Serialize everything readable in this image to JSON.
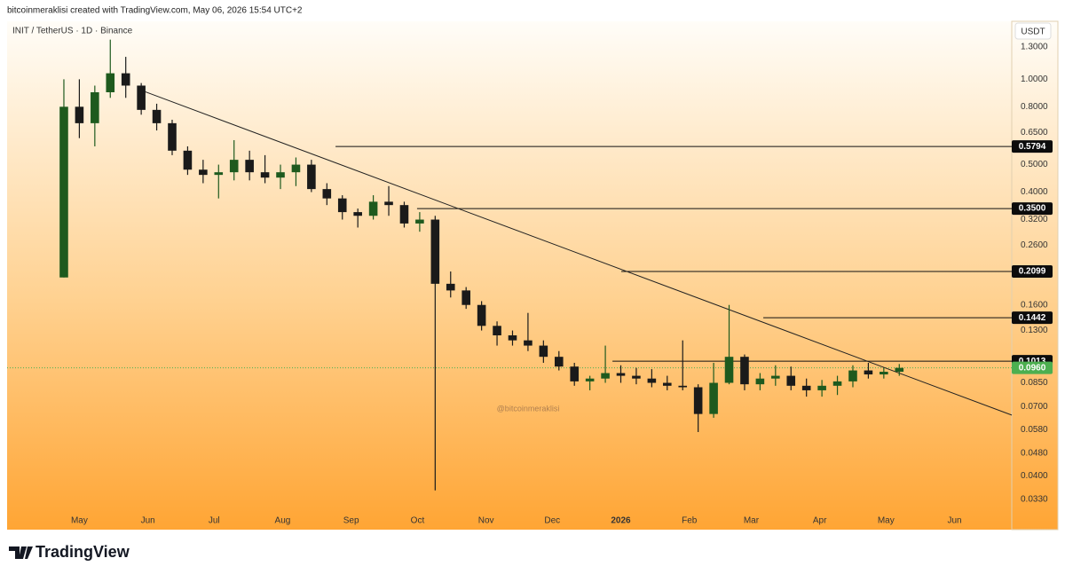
{
  "header": "bitcoinmeraklisi created with TradingView.com, May 06, 2026 15:54 UTC+2",
  "chart_data": {
    "type": "candlestick",
    "symbol": "INIT / TetherUS · 1D · Binance",
    "currency": "USDT",
    "watermark": "@bitcoinmeraklisi",
    "log_scale": true,
    "grid": false,
    "up_color": "#1e5a1e",
    "down_color": "#1a1a1a",
    "ylim": [
      0.0258,
      1.556
    ],
    "yticks": [
      {
        "value": 1.3,
        "label": "1.3000"
      },
      {
        "value": 1.0,
        "label": "1.0000"
      },
      {
        "value": 0.8,
        "label": "0.8000"
      },
      {
        "value": 0.65,
        "label": "0.6500"
      },
      {
        "value": 0.5,
        "label": "0.5000"
      },
      {
        "value": 0.4,
        "label": "0.4000"
      },
      {
        "value": 0.32,
        "label": "0.3200"
      },
      {
        "value": 0.26,
        "label": "0.2600"
      },
      {
        "value": 0.16,
        "label": "0.1600"
      },
      {
        "value": 0.13,
        "label": "0.1300"
      },
      {
        "value": 0.085,
        "label": "0.0850"
      },
      {
        "value": 0.07,
        "label": "0.0700"
      },
      {
        "value": 0.058,
        "label": "0.0580"
      },
      {
        "value": 0.048,
        "label": "0.0480"
      },
      {
        "value": 0.04,
        "label": "0.0400"
      },
      {
        "value": 0.033,
        "label": "0.0330"
      }
    ],
    "xlim": [
      -3.67,
      61.27
    ],
    "xticks": [
      {
        "value": 1,
        "label": "May"
      },
      {
        "value": 5.43,
        "label": "Jun"
      },
      {
        "value": 9.71,
        "label": "Jul"
      },
      {
        "value": 14.14,
        "label": "Aug"
      },
      {
        "value": 18.57,
        "label": "Sep"
      },
      {
        "value": 22.86,
        "label": "Oct"
      },
      {
        "value": 27.29,
        "label": "Nov"
      },
      {
        "value": 31.57,
        "label": "Dec"
      },
      {
        "value": 36,
        "label": "2026"
      },
      {
        "value": 40.43,
        "label": "Feb"
      },
      {
        "value": 44.43,
        "label": "Mar"
      },
      {
        "value": 48.86,
        "label": "Apr"
      },
      {
        "value": 53.14,
        "label": "May"
      },
      {
        "value": 57.57,
        "label": "Jun"
      }
    ],
    "open": [
      0.2,
      0.8,
      0.7,
      0.9,
      1.05,
      0.95,
      0.78,
      0.7,
      0.56,
      0.48,
      0.46,
      0.47,
      0.52,
      0.47,
      0.45,
      0.47,
      0.5,
      0.41,
      0.38,
      0.34,
      0.33,
      0.37,
      0.36,
      0.31,
      0.32,
      0.19,
      0.18,
      0.16,
      0.135,
      0.125,
      0.12,
      0.115,
      0.105,
      0.097,
      0.086,
      0.088,
      0.092,
      0.09,
      0.088,
      0.085,
      0.083,
      0.082,
      0.066,
      0.085,
      0.105,
      0.084,
      0.088,
      0.09,
      0.083,
      0.08,
      0.083,
      0.086,
      0.094,
      0.091,
      0.093
    ],
    "high": [
      1.0,
      1.0,
      0.95,
      1.38,
      1.2,
      0.97,
      0.82,
      0.72,
      0.58,
      0.52,
      0.5,
      0.61,
      0.56,
      0.54,
      0.5,
      0.53,
      0.52,
      0.43,
      0.39,
      0.35,
      0.39,
      0.42,
      0.37,
      0.34,
      0.33,
      0.21,
      0.185,
      0.165,
      0.14,
      0.13,
      0.15,
      0.12,
      0.11,
      0.1,
      0.09,
      0.115,
      0.098,
      0.096,
      0.095,
      0.09,
      0.12,
      0.084,
      0.1,
      0.16,
      0.107,
      0.092,
      0.098,
      0.097,
      0.088,
      0.087,
      0.09,
      0.098,
      0.1,
      0.096,
      0.099
    ],
    "low": [
      0.2,
      0.62,
      0.58,
      0.86,
      0.86,
      0.75,
      0.66,
      0.54,
      0.46,
      0.43,
      0.38,
      0.44,
      0.44,
      0.43,
      0.41,
      0.42,
      0.4,
      0.36,
      0.32,
      0.3,
      0.32,
      0.33,
      0.3,
      0.29,
      0.0355,
      0.17,
      0.155,
      0.13,
      0.115,
      0.115,
      0.11,
      0.1,
      0.094,
      0.083,
      0.08,
      0.085,
      0.085,
      0.084,
      0.082,
      0.08,
      0.08,
      0.057,
      0.064,
      0.084,
      0.08,
      0.08,
      0.083,
      0.08,
      0.076,
      0.076,
      0.077,
      0.082,
      0.088,
      0.088,
      0.09
    ],
    "close": [
      0.8,
      0.7,
      0.9,
      1.05,
      0.95,
      0.78,
      0.7,
      0.56,
      0.48,
      0.46,
      0.47,
      0.52,
      0.47,
      0.45,
      0.47,
      0.5,
      0.41,
      0.38,
      0.34,
      0.33,
      0.37,
      0.36,
      0.31,
      0.32,
      0.19,
      0.18,
      0.16,
      0.135,
      0.125,
      0.12,
      0.115,
      0.105,
      0.097,
      0.086,
      0.088,
      0.092,
      0.09,
      0.088,
      0.085,
      0.083,
      0.082,
      0.066,
      0.085,
      0.105,
      0.084,
      0.088,
      0.09,
      0.083,
      0.08,
      0.083,
      0.086,
      0.094,
      0.091,
      0.093,
      0.096
    ],
    "trendline": {
      "x": [
        4.76,
        61.27
      ],
      "values": [
        0.925,
        0.0654
      ]
    },
    "levels": [
      {
        "value": 0.5794,
        "start": 17.56
      },
      {
        "value": {
          "value": 0.35,
          "label": "0.3500"
        },
        "start": 22.83
      },
      {
        "value": 0.2099,
        "start": 36.03
      },
      {
        "value": 0.1442,
        "start": 45.21
      },
      {
        "value": 0.1013,
        "start": 35.46
      }
    ],
    "last_price": {
      "value": 0.096,
      "label": "0.0960"
    },
    "last_price_color": "#4caf50"
  },
  "footer": {
    "logo": "TradingView"
  }
}
